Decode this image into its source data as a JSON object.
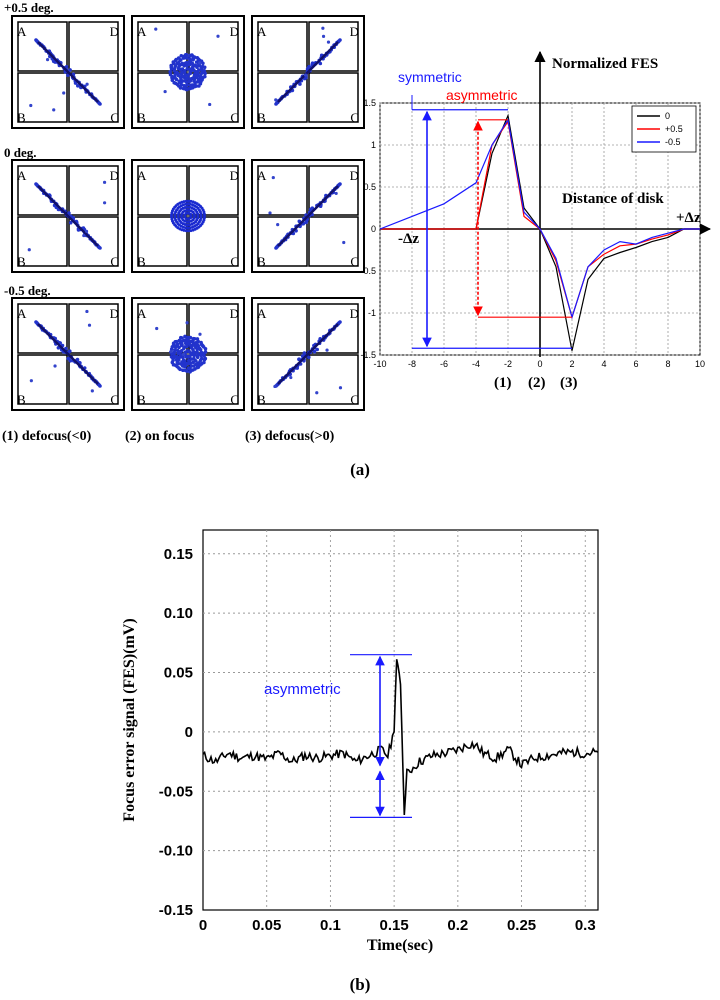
{
  "panel_a": {
    "label": "(a)",
    "row_labels": [
      "+0.5 deg.",
      "0 deg.",
      "-0.5 deg."
    ],
    "quadrant_labels": [
      "A",
      "D",
      "B",
      "C"
    ],
    "column_captions": [
      "(1) defocus(<0)",
      "(2) on focus",
      "(3) defocus(>0)"
    ],
    "spot_shapes": [
      [
        "diag-down",
        "blob",
        "diag-up"
      ],
      [
        "diag-down",
        "rings",
        "diag-up"
      ],
      [
        "diag-down",
        "blob",
        "diag-up"
      ]
    ],
    "annot_symmetric": "symmetric",
    "annot_asymmetric": "asymmetric",
    "y_axis_title": "Normalized FES",
    "x_axis_title": "Distance of disk",
    "neg_dz": "-Δz",
    "pos_dz": "+Δz",
    "x_positions_label": [
      "(1)",
      "(2)",
      "(3)"
    ]
  },
  "panel_b": {
    "label": "(b)",
    "annot_asymmetric": "asymmetric"
  },
  "colors": {
    "blue": "#1a1aff",
    "red": "#ff0000",
    "black": "#000000",
    "grid": "#9a9a9a"
  },
  "chart_data": [
    {
      "type": "line",
      "title": "Normalized FES",
      "xlabel": "Distance of disk",
      "ylabel": "",
      "xlim": [
        -10,
        10
      ],
      "ylim": [
        -1.5,
        1.5
      ],
      "x_ticks": [
        -10,
        -8,
        -6,
        -4,
        -2,
        0,
        2,
        4,
        6,
        8,
        10
      ],
      "y_ticks": [
        -1.5,
        -1,
        -0.5,
        0,
        0.5,
        1,
        1.5
      ],
      "y_tick_labels": [
        "-1.5",
        "-1",
        "-0.5",
        "0",
        "0.5",
        "1",
        "1.5"
      ],
      "grid": true,
      "legend_position": "top-right",
      "series": [
        {
          "name": "0",
          "color": "#000000",
          "x": [
            -10,
            -8,
            -6,
            -4,
            -3,
            -2,
            -1,
            0,
            1,
            2,
            3,
            4,
            5,
            6,
            7,
            8,
            9,
            10
          ],
          "y": [
            0,
            0,
            0,
            0,
            0.9,
            1.35,
            0.25,
            0,
            -0.45,
            -1.45,
            -0.6,
            -0.35,
            -0.28,
            -0.22,
            -0.15,
            -0.1,
            0,
            0
          ]
        },
        {
          "name": "+0.5",
          "color": "#ff0000",
          "x": [
            -10,
            -8,
            -6,
            -4,
            -3,
            -2,
            -1,
            0,
            1,
            2,
            3,
            4,
            5,
            6,
            7,
            8,
            9,
            10
          ],
          "y": [
            0,
            0,
            0,
            0,
            1.0,
            1.28,
            0.15,
            0,
            -0.38,
            -1.05,
            -0.45,
            -0.3,
            -0.2,
            -0.18,
            -0.12,
            -0.07,
            0,
            0
          ]
        },
        {
          "name": "-0.5",
          "color": "#1a1aff",
          "x": [
            -10,
            -8,
            -6,
            -4,
            -3,
            -2,
            -1,
            0,
            1,
            2,
            3,
            4,
            5,
            6,
            7,
            8,
            9,
            10
          ],
          "y": [
            0,
            0.15,
            0.3,
            0.55,
            1.0,
            1.3,
            0.2,
            0,
            -0.35,
            -1.05,
            -0.45,
            -0.25,
            -0.15,
            -0.18,
            -0.1,
            -0.05,
            0,
            0
          ]
        }
      ]
    },
    {
      "type": "line",
      "title": "",
      "xlabel": "Time(sec)",
      "ylabel": "Focus error signal (FES)(mV)",
      "xlim": [
        0,
        0.31
      ],
      "ylim": [
        -0.15,
        0.17
      ],
      "x_ticks": [
        0,
        0.05,
        0.1,
        0.15,
        0.2,
        0.25,
        0.3
      ],
      "x_tick_labels": [
        "0",
        "0.05",
        "0.1",
        "0.15",
        "0.2",
        "0.25",
        "0.3"
      ],
      "y_ticks": [
        -0.15,
        -0.1,
        -0.05,
        0,
        0.05,
        0.1,
        0.15
      ],
      "y_tick_labels": [
        "-0.15",
        "-0.10",
        "-0.05",
        "0",
        "0.05",
        "0.10",
        "0.15"
      ],
      "grid": true,
      "series": [
        {
          "name": "FES",
          "color": "#000000",
          "x": [
            0,
            0.01,
            0.02,
            0.03,
            0.04,
            0.05,
            0.06,
            0.07,
            0.08,
            0.09,
            0.1,
            0.11,
            0.12,
            0.13,
            0.14,
            0.145,
            0.15,
            0.152,
            0.155,
            0.158,
            0.16,
            0.165,
            0.17,
            0.18,
            0.19,
            0.2,
            0.21,
            0.215,
            0.22,
            0.23,
            0.24,
            0.25,
            0.26,
            0.27,
            0.28,
            0.29,
            0.3,
            0.31
          ],
          "y": [
            -0.02,
            -0.025,
            -0.018,
            -0.022,
            -0.02,
            -0.023,
            -0.018,
            -0.025,
            -0.02,
            -0.022,
            -0.02,
            -0.018,
            -0.025,
            -0.02,
            -0.015,
            -0.02,
            0.0,
            0.065,
            0.04,
            -0.07,
            -0.035,
            -0.03,
            -0.025,
            -0.02,
            -0.018,
            -0.015,
            -0.01,
            -0.012,
            -0.018,
            -0.022,
            -0.015,
            -0.028,
            -0.022,
            -0.02,
            -0.018,
            -0.017,
            -0.018,
            -0.017
          ]
        }
      ]
    }
  ]
}
